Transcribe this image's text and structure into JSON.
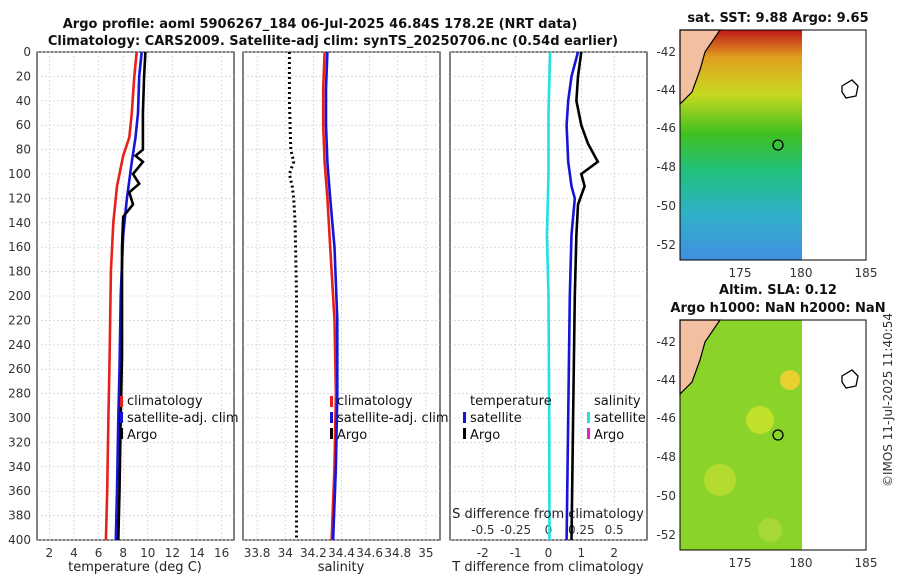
{
  "title_line1": "Argo profile: aoml 5906267_184 06-Jul-2025 46.84S 178.2E (NRT data)",
  "title_line2": "Climatology: CARS2009. Satellite-adj clim: synTS_20250706.nc (0.54d earlier)",
  "watermark": "©IMOS 11-Jul-2025 11:40:54",
  "chart_data": [
    {
      "type": "line",
      "panel": "temperature",
      "xlabel": "temperature (deg C)",
      "xlim": [
        1,
        17
      ],
      "xticks": [
        2,
        4,
        6,
        8,
        10,
        12,
        14,
        16
      ],
      "ylim": [
        0,
        400
      ],
      "yticks": [
        0,
        20,
        40,
        60,
        80,
        100,
        120,
        140,
        160,
        180,
        200,
        220,
        240,
        260,
        280,
        300,
        320,
        340,
        360,
        380,
        400
      ],
      "legend": [
        "climatology",
        "satellite-adj. clim",
        "Argo"
      ],
      "series": [
        {
          "name": "climatology",
          "color": "#e8201a",
          "points": [
            [
              9.1,
              0
            ],
            [
              8.9,
              20
            ],
            [
              8.7,
              50
            ],
            [
              8.5,
              70
            ],
            [
              8.0,
              85
            ],
            [
              7.5,
              110
            ],
            [
              7.2,
              140
            ],
            [
              7.0,
              180
            ],
            [
              6.9,
              250
            ],
            [
              6.8,
              300
            ],
            [
              6.7,
              360
            ],
            [
              6.6,
              400
            ]
          ]
        },
        {
          "name": "satellite-adj. clim",
          "color": "#1515d8",
          "points": [
            [
              9.5,
              0
            ],
            [
              9.3,
              20
            ],
            [
              9.2,
              50
            ],
            [
              9.0,
              70
            ],
            [
              8.7,
              90
            ],
            [
              8.3,
              120
            ],
            [
              8.0,
              150
            ],
            [
              7.8,
              200
            ],
            [
              7.7,
              260
            ],
            [
              7.6,
              300
            ],
            [
              7.5,
              360
            ],
            [
              7.4,
              400
            ]
          ]
        },
        {
          "name": "Argo",
          "color": "#000000",
          "points": [
            [
              9.8,
              0
            ],
            [
              9.7,
              20
            ],
            [
              9.6,
              50
            ],
            [
              9.6,
              80
            ],
            [
              9.0,
              85
            ],
            [
              9.6,
              90
            ],
            [
              8.8,
              100
            ],
            [
              9.3,
              108
            ],
            [
              8.5,
              115
            ],
            [
              8.8,
              125
            ],
            [
              8.0,
              135
            ],
            [
              7.9,
              160
            ],
            [
              7.9,
              250
            ],
            [
              7.8,
              300
            ],
            [
              7.7,
              360
            ],
            [
              7.6,
              400
            ]
          ]
        }
      ]
    },
    {
      "type": "line",
      "panel": "salinity",
      "xlabel": "salinity",
      "xlim": [
        33.7,
        35.1
      ],
      "xticks": [
        33.8,
        34,
        34.2,
        34.4,
        34.6,
        34.8,
        35
      ],
      "xticklabels": [
        "33.8",
        "34",
        "34.2",
        "34.4",
        "34.6",
        "34.8",
        "35"
      ],
      "ylim": [
        0,
        400
      ],
      "legend": [
        "climatology",
        "satellite-adj. clim",
        "Argo"
      ],
      "series": [
        {
          "name": "climatology",
          "color": "#e8201a",
          "points": [
            [
              34.28,
              0
            ],
            [
              34.27,
              30
            ],
            [
              34.27,
              60
            ],
            [
              34.28,
              90
            ],
            [
              34.3,
              120
            ],
            [
              34.32,
              160
            ],
            [
              34.35,
              220
            ],
            [
              34.36,
              280
            ],
            [
              34.35,
              340
            ],
            [
              34.33,
              400
            ]
          ]
        },
        {
          "name": "satellite-adj. clim",
          "color": "#1515d8",
          "points": [
            [
              34.3,
              0
            ],
            [
              34.29,
              30
            ],
            [
              34.29,
              60
            ],
            [
              34.3,
              90
            ],
            [
              34.32,
              120
            ],
            [
              34.35,
              160
            ],
            [
              34.37,
              220
            ],
            [
              34.37,
              280
            ],
            [
              34.36,
              340
            ],
            [
              34.34,
              400
            ]
          ]
        },
        {
          "name": "Argo",
          "color": "#000000",
          "dotted": true,
          "points": [
            [
              34.03,
              0
            ],
            [
              34.03,
              40
            ],
            [
              34.04,
              80
            ],
            [
              34.06,
              90
            ],
            [
              34.03,
              100
            ],
            [
              34.05,
              110
            ],
            [
              34.06,
              120
            ],
            [
              34.07,
              140
            ],
            [
              34.08,
              200
            ],
            [
              34.08,
              300
            ],
            [
              34.08,
              400
            ]
          ]
        }
      ]
    },
    {
      "type": "line",
      "panel": "difference",
      "xlabel": "T difference from climatology",
      "xlabel_top": "S difference from climatology",
      "xlim": [
        -3,
        3
      ],
      "xticks": [
        -2,
        -1,
        0,
        1,
        2
      ],
      "xticklabels": [
        "-2",
        "-1",
        "0",
        "1",
        "2"
      ],
      "sticks_pos": [
        -2,
        -1,
        0,
        1,
        2
      ],
      "sticklabels": [
        "-0.5",
        "-0.25",
        "0",
        "0.25",
        "0.5"
      ],
      "ylim": [
        0,
        400
      ],
      "legend_left": [
        "temperature",
        "satellite",
        "Argo"
      ],
      "legend_right": [
        "salinity",
        "satellite",
        "Argo"
      ],
      "series": [
        {
          "name": "T satellite",
          "color": "#1515d8",
          "points": [
            [
              0.9,
              0
            ],
            [
              0.7,
              20
            ],
            [
              0.6,
              40
            ],
            [
              0.55,
              60
            ],
            [
              0.6,
              90
            ],
            [
              0.7,
              110
            ],
            [
              0.8,
              120
            ],
            [
              0.7,
              150
            ],
            [
              0.65,
              200
            ],
            [
              0.6,
              300
            ],
            [
              0.55,
              400
            ]
          ]
        },
        {
          "name": "T Argo",
          "color": "#000000",
          "points": [
            [
              1.0,
              0
            ],
            [
              0.9,
              20
            ],
            [
              0.85,
              40
            ],
            [
              1.0,
              60
            ],
            [
              1.2,
              75
            ],
            [
              1.5,
              90
            ],
            [
              1.0,
              100
            ],
            [
              1.1,
              110
            ],
            [
              0.9,
              125
            ],
            [
              0.85,
              150
            ],
            [
              0.8,
              200
            ],
            [
              0.75,
              300
            ],
            [
              0.7,
              400
            ]
          ]
        },
        {
          "name": "S satellite",
          "color": "#22e0e8",
          "points": [
            [
              0.05,
              0
            ],
            [
              0.0,
              50
            ],
            [
              0.0,
              100
            ],
            [
              -0.05,
              150
            ],
            [
              0.0,
              200
            ],
            [
              0.02,
              300
            ],
            [
              0.03,
              400
            ]
          ]
        }
      ]
    }
  ],
  "maps": {
    "sst_title": "sat. SST: 9.88 Argo: 9.65",
    "sla_title1": "Altim. SLA: 0.12",
    "sla_title2": "Argo h1000: NaN h2000: NaN",
    "lat_ticks": [
      "-42",
      "-44",
      "-46",
      "-48",
      "-50",
      "-52"
    ],
    "lon_ticks": [
      "175",
      "180",
      "185"
    ]
  }
}
